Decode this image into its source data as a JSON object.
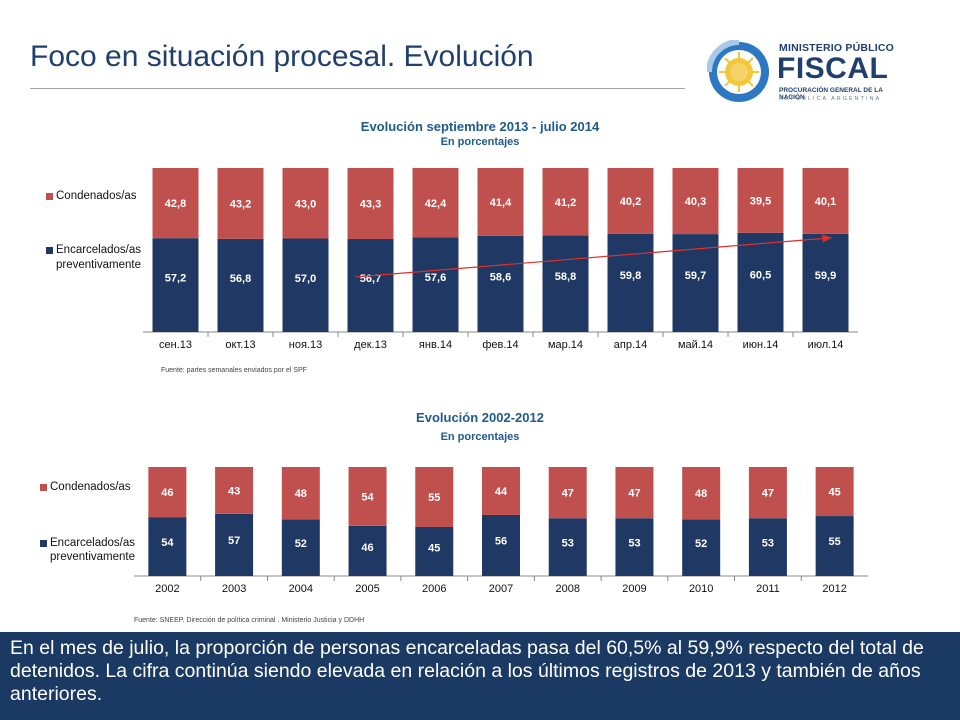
{
  "header": {
    "title": "Foco en situación procesal. Evolución"
  },
  "logo": {
    "line1": "MINISTERIO PÚBLICO",
    "line2": "FISCAL",
    "line3": "PROCURACIÓN GENERAL DE LA NACIÓN",
    "line4": "REPÚBLICA ARGENTINA"
  },
  "colors": {
    "condenados": "#c0504d",
    "encarcelados": "#1f3864",
    "trend": "#e0302a",
    "title": "#1f3f6d",
    "footer_bg": "#1b3a63"
  },
  "legend": {
    "condenados": "Condenados/as",
    "encarcelados_line1": "Encarcelados/as",
    "encarcelados_line2": "preventivamente"
  },
  "chart1": {
    "title": "Evolución septiembre 2013 - julio 2014",
    "subtitle": "En porcentajes",
    "source": "Fuente: partes semanales enviados por el SPF"
  },
  "chart2": {
    "title": "Evolución 2002-2012",
    "subtitle": "En porcentajes",
    "source": "Fuente: SNEEP. Dirección de política criminal . Ministerio Justicia y DDHH"
  },
  "chart_data": [
    {
      "type": "bar",
      "stacked": true,
      "title": "Evolución septiembre 2013 - julio 2014",
      "subtitle": "En porcentajes",
      "categories": [
        "сен.13",
        "окт.13",
        "ноя.13",
        "дек.13",
        "янв.14",
        "фев.14",
        "мар.14",
        "апр.14",
        "май.14",
        "июн.14",
        "июл.14"
      ],
      "series": [
        {
          "name": "Encarcelados/as preventivamente",
          "values": [
            57.2,
            56.8,
            57.0,
            56.7,
            57.6,
            58.6,
            58.8,
            59.8,
            59.7,
            60.5,
            59.9
          ],
          "labels": [
            "57,2",
            "56,8",
            "57,0",
            "56,7",
            "57,6",
            "58,6",
            "58,8",
            "59,8",
            "59,7",
            "60,5",
            "59,9"
          ]
        },
        {
          "name": "Condenados/as",
          "values": [
            42.8,
            43.2,
            43.0,
            43.3,
            42.4,
            41.4,
            41.2,
            40.2,
            40.3,
            39.5,
            40.1
          ],
          "labels": [
            "42,8",
            "43,2",
            "43,0",
            "43,3",
            "42,4",
            "41,4",
            "41,2",
            "40,2",
            "40,3",
            "39,5",
            "40,1"
          ]
        }
      ],
      "ylim": [
        0,
        100
      ],
      "trend_arrow": {
        "from_category": "дек.13",
        "to_category": "июл.14"
      },
      "legend": "left"
    },
    {
      "type": "bar",
      "stacked": true,
      "title": "Evolución 2002-2012",
      "subtitle": "En porcentajes",
      "categories": [
        "2002",
        "2003",
        "2004",
        "2005",
        "2006",
        "2007",
        "2008",
        "2009",
        "2010",
        "2011",
        "2012"
      ],
      "series": [
        {
          "name": "Encarcelados/as preventivamente",
          "values": [
            54,
            57,
            52,
            46,
            45,
            56,
            53,
            53,
            52,
            53,
            55
          ],
          "labels": [
            "54",
            "57",
            "52",
            "46",
            "45",
            "56",
            "53",
            "53",
            "52",
            "53",
            "55"
          ]
        },
        {
          "name": "Condenados/as",
          "values": [
            46,
            43,
            48,
            54,
            55,
            44,
            47,
            47,
            48,
            47,
            45
          ],
          "labels": [
            "46",
            "43",
            "48",
            "54",
            "55",
            "44",
            "47",
            "47",
            "48",
            "47",
            "45"
          ]
        }
      ],
      "ylim": [
        0,
        100
      ],
      "legend": "left"
    }
  ],
  "footer": {
    "text": "En el mes de julio, la proporción de personas encarceladas pasa del 60,5% al 59,9% respecto del total de detenidos. La cifra continúa siendo elevada en relación a los últimos registros de 2013 y también de años anteriores."
  }
}
